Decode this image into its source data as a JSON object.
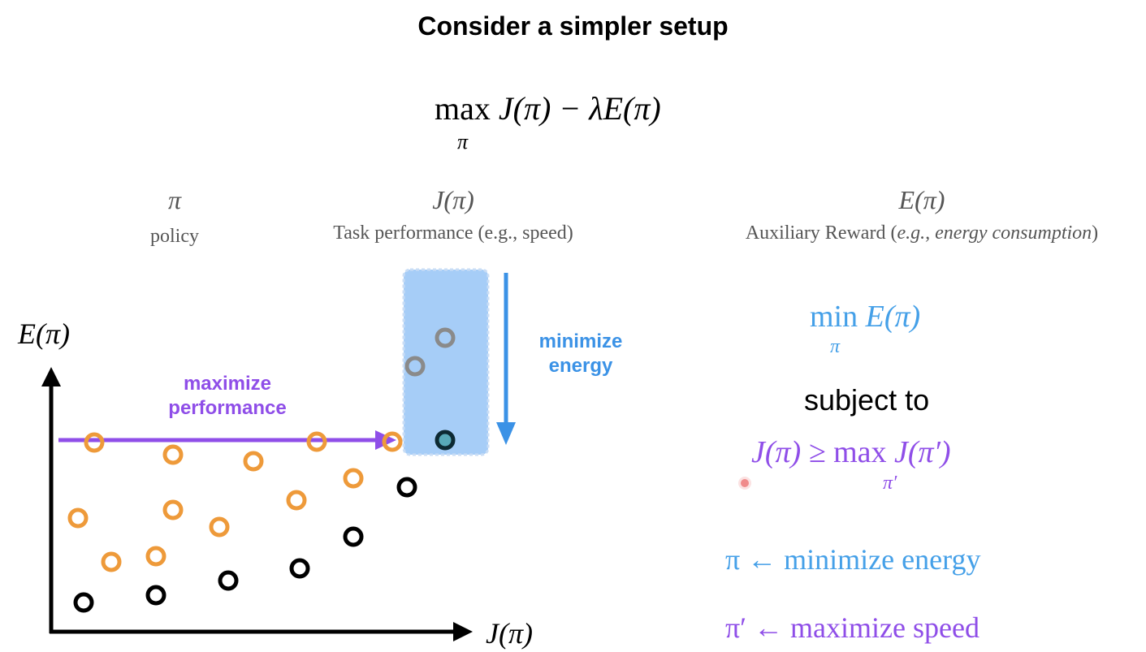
{
  "title": "Consider a simpler setup",
  "objective": {
    "max": "max",
    "sub": "π",
    "expr": "J(π) − λE(π)"
  },
  "columns": [
    {
      "symbol": "π",
      "desc": "policy"
    },
    {
      "symbol": "J(π)",
      "desc": "Task performance (e.g., speed)"
    },
    {
      "symbol": "E(π)",
      "desc_prefix": "Auxiliary Reward (",
      "desc_italic": "e.g., energy consumption",
      "desc_suffix": ")"
    }
  ],
  "axes": {
    "ylabel": "E(π)",
    "xlabel": "J(π)"
  },
  "annotations": {
    "maximize_line1": "maximize",
    "maximize_line2": "performance",
    "minimize_line1": "minimize",
    "minimize_line2": "energy"
  },
  "constraint": {
    "min": "min",
    "min_sub": "π",
    "min_expr": "E(π)",
    "subject_to": "subject to",
    "lhs": "J(π) ≥",
    "max": "max",
    "max_sub": "π′",
    "rhs": "J(π′)"
  },
  "assignments": {
    "pi": "π ← minimize energy",
    "pi_prime": "π′ ← maximize speed"
  },
  "colors": {
    "orange": "#ee9a3a",
    "black": "#000000",
    "gray": "#8a8a8a",
    "purple": "#8f4ee8",
    "blue": "#3b92e6",
    "highlight": "#a6cdf7"
  }
}
